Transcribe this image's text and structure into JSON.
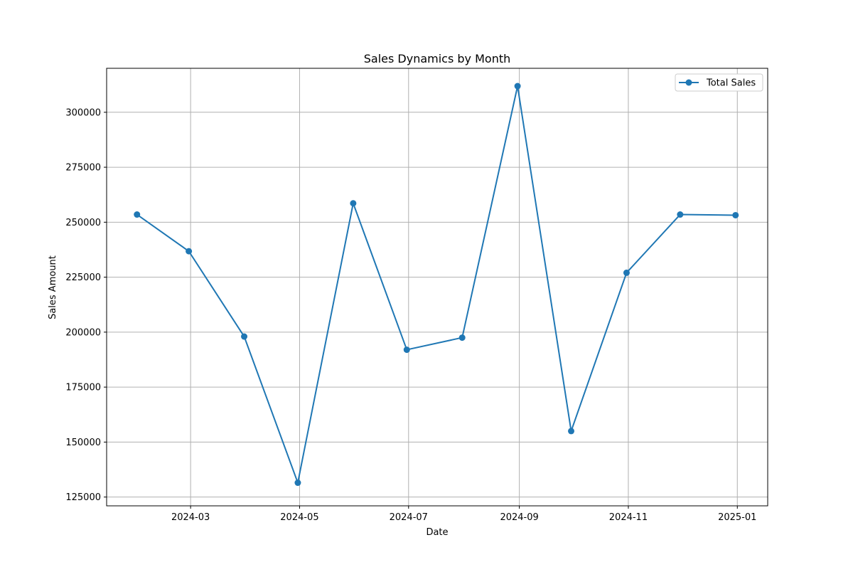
{
  "chart_data": {
    "type": "line",
    "title": "Sales Dynamics by Month",
    "xlabel": "Date",
    "ylabel": "Sales Amount",
    "grid": true,
    "legend_position": "top-right",
    "x_ticks": [
      "2024-03",
      "2024-05",
      "2024-07",
      "2024-09",
      "2024-11",
      "2025-01"
    ],
    "y_ticks": [
      125000,
      150000,
      175000,
      200000,
      225000,
      250000,
      275000,
      300000
    ],
    "xlim": [
      "2024-01-14",
      "2025-01-18"
    ],
    "ylim": [
      121000,
      320000
    ],
    "series": [
      {
        "name": "Total Sales",
        "color": "#1f77b4",
        "marker": "circle",
        "x": [
          "2024-01-31",
          "2024-02-29",
          "2024-03-31",
          "2024-04-30",
          "2024-05-31",
          "2024-06-30",
          "2024-07-31",
          "2024-08-31",
          "2024-09-30",
          "2024-10-31",
          "2024-11-30",
          "2024-12-31"
        ],
        "values": [
          253500,
          236800,
          198000,
          131500,
          258600,
          192000,
          197500,
          311900,
          155000,
          227000,
          253500,
          253200
        ]
      }
    ]
  }
}
